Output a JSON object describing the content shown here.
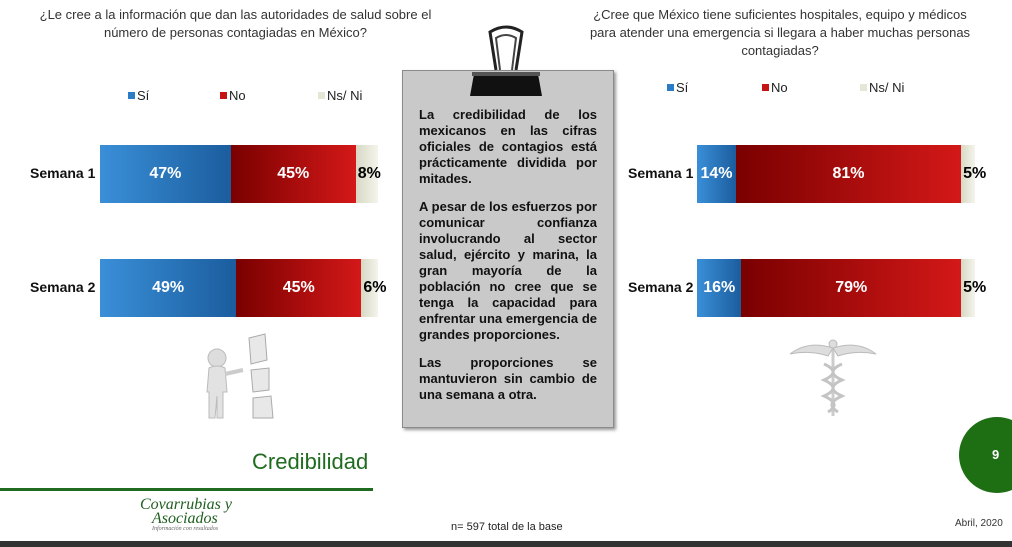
{
  "chart_data": [
    {
      "type": "bar",
      "orientation": "horizontal",
      "stacked": true,
      "title": "¿Le cree a la información que dan las autoridades de salud sobre el número de personas contagiadas en México?",
      "categories": [
        "Semana 1",
        "Semana 2"
      ],
      "series": [
        {
          "name": "Sí",
          "color": "#2a7cc6",
          "values": [
            47,
            49
          ],
          "value_labels": [
            "47%",
            "49%"
          ]
        },
        {
          "name": "No",
          "color": "#c41414",
          "values": [
            45,
            45
          ],
          "value_labels": [
            "45%",
            "45%"
          ]
        },
        {
          "name": "Ns/ Ni",
          "color": "#e6e6d6",
          "values": [
            8,
            6
          ],
          "value_labels": [
            "8%",
            "6%"
          ]
        }
      ]
    },
    {
      "type": "bar",
      "orientation": "horizontal",
      "stacked": true,
      "title": "¿Cree que México tiene suficientes hospitales, equipo y médicos para atender una emergencia si llegara a haber muchas personas contagiadas?",
      "categories": [
        "Semana 1",
        "Semana 2"
      ],
      "series": [
        {
          "name": "Sí",
          "color": "#2a7cc6",
          "values": [
            14,
            16
          ],
          "value_labels": [
            "14%",
            "16%"
          ]
        },
        {
          "name": "No",
          "color": "#c41414",
          "values": [
            81,
            79
          ],
          "value_labels": [
            "81%",
            "79%"
          ]
        },
        {
          "name": "Ns/ Ni",
          "color": "#e6e6d6",
          "values": [
            5,
            5
          ],
          "value_labels": [
            "5%",
            "5%"
          ]
        }
      ]
    }
  ],
  "summary": {
    "paragraphs": [
      "La credibilidad de los mexicanos en las cifras oficiales de contagios está prácticamente dividida por mitades.",
      "A pesar de los esfuerzos por comunicar confianza involucrando al sector salud, ejército y marina, la gran mayoría de la población no cree que se tenga la capacidad para enfrentar una emergencia de grandes proporciones.",
      "Las proporciones se mantuvieron sin cambio de una semana a otra."
    ]
  },
  "section_title": "Credibilidad",
  "logo": {
    "lines": [
      "Covarrubias y",
      "Asociados"
    ],
    "tagline": "Información con resultados"
  },
  "footnote": "n= 597 total de la base",
  "date": "Abril, 2020",
  "page_number": "9"
}
